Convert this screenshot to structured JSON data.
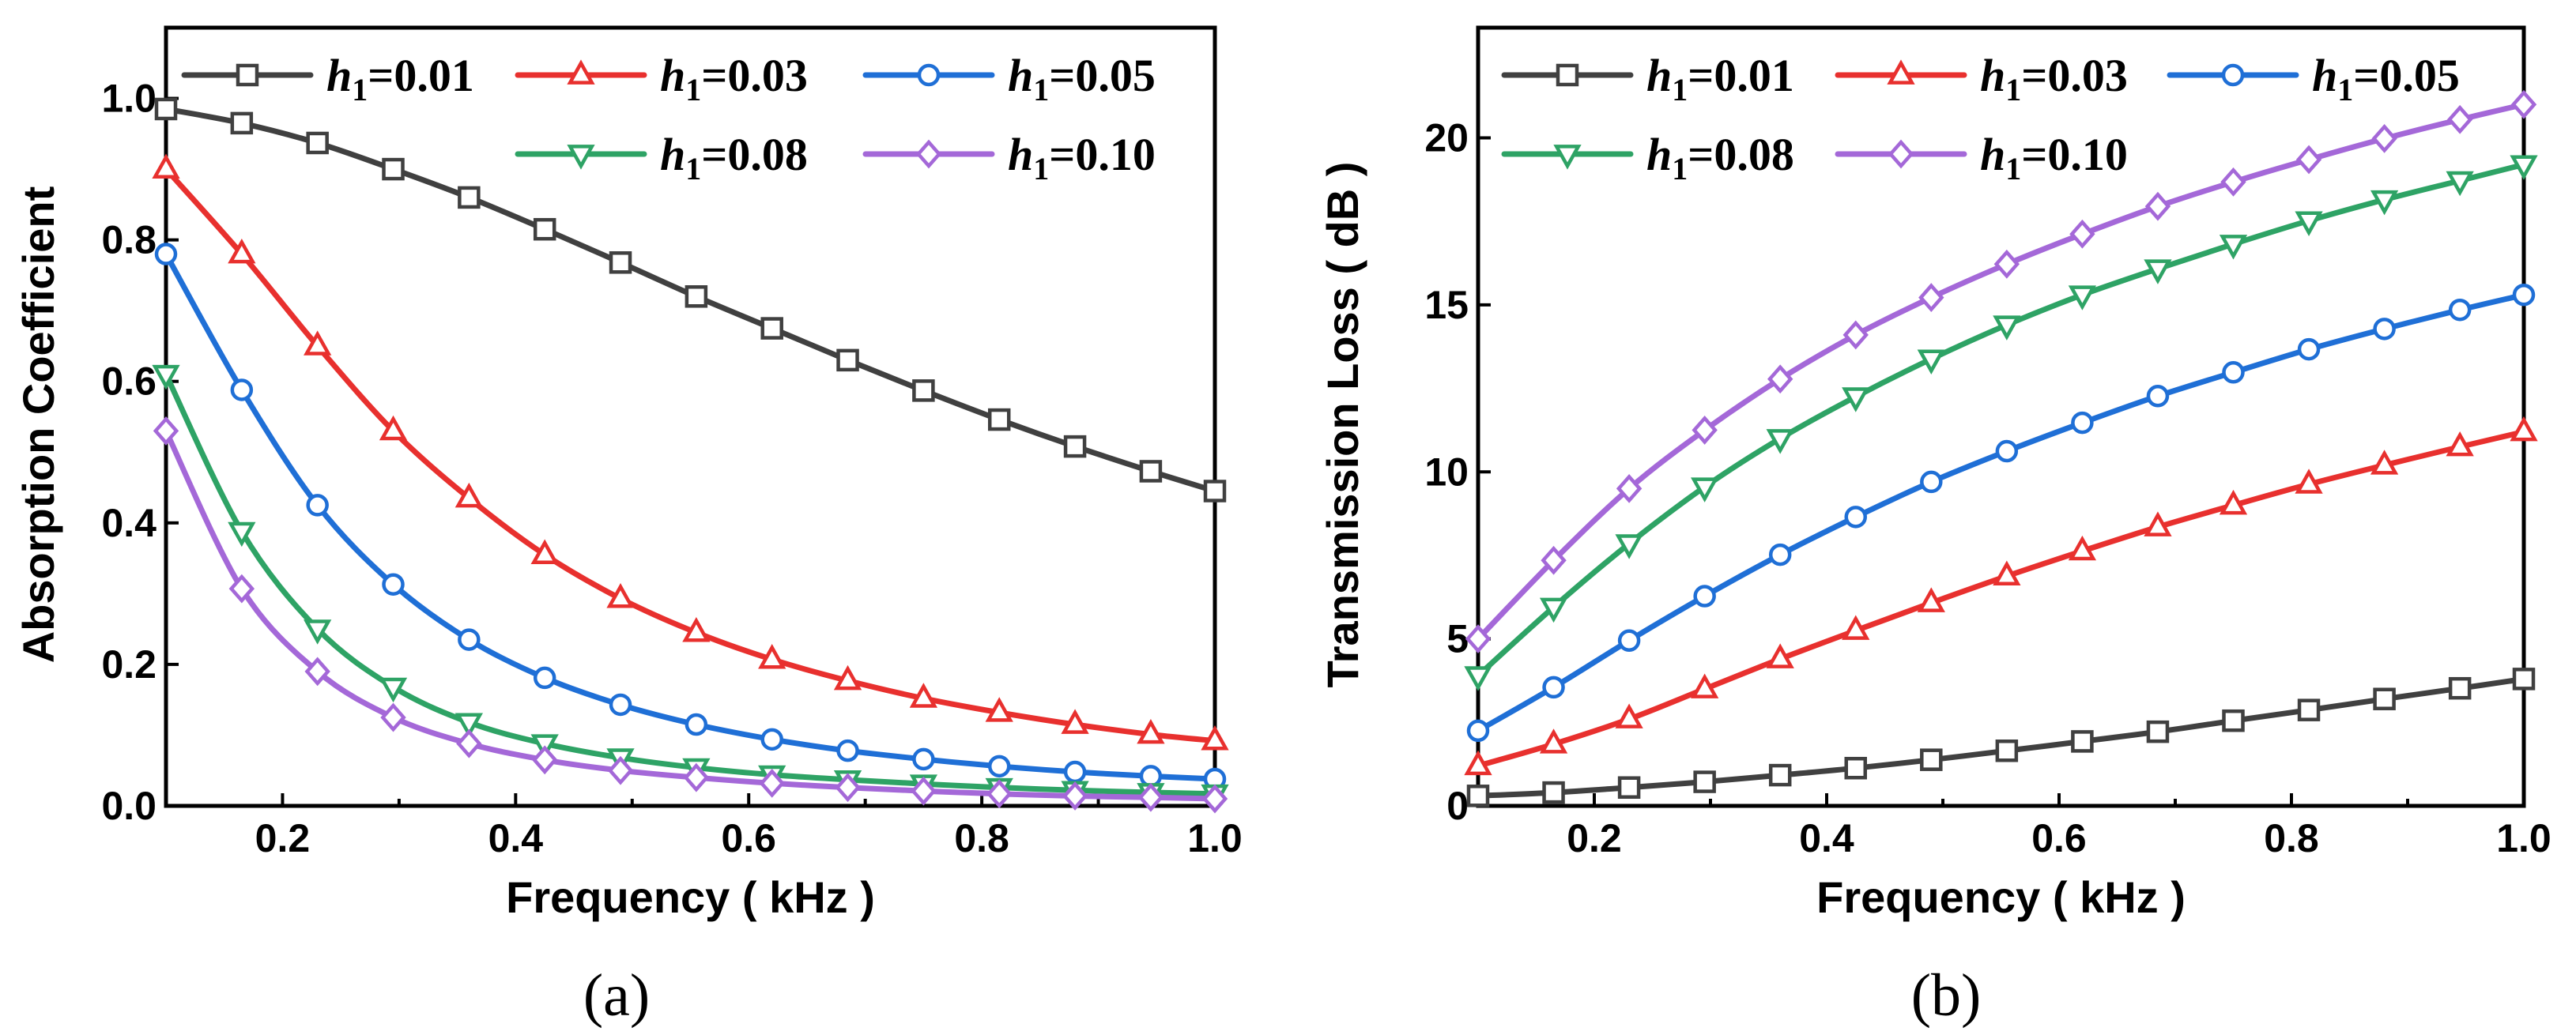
{
  "chart_data": [
    {
      "type": "line",
      "caption": "(a)",
      "xlabel": "Frequency ( kHz )",
      "ylabel": "Absorption Coefficient",
      "xlim": [
        0.1,
        1.0
      ],
      "ylim": [
        0.0,
        1.1
      ],
      "xticks": [
        0.2,
        0.4,
        0.6,
        0.8,
        1.0
      ],
      "xtick_labels": [
        "0.2",
        "0.4",
        "0.6",
        "0.8",
        "1.0"
      ],
      "yticks": [
        0.0,
        0.2,
        0.4,
        0.6,
        0.8,
        1.0
      ],
      "ytick_labels": [
        "0.0",
        "0.2",
        "0.4",
        "0.6",
        "0.8",
        "1.0"
      ],
      "legend_position": "top",
      "x": [
        0.1,
        0.165,
        0.23,
        0.295,
        0.36,
        0.425,
        0.49,
        0.555,
        0.62,
        0.685,
        0.75,
        0.815,
        0.88,
        0.945,
        1.0
      ],
      "series": [
        {
          "name": "h1=0.01",
          "label_var": "h",
          "label_sub": "1",
          "label_val": "=0.01",
          "color": "#404040",
          "marker": "square",
          "values": [
            0.985,
            0.965,
            0.937,
            0.9,
            0.86,
            0.815,
            0.768,
            0.72,
            0.675,
            0.63,
            0.587,
            0.546,
            0.508,
            0.473,
            0.445
          ]
        },
        {
          "name": "h1=0.03",
          "label_var": "h",
          "label_sub": "1",
          "label_val": "=0.03",
          "color": "#e8302e",
          "marker": "triangle-up",
          "values": [
            0.9,
            0.78,
            0.65,
            0.53,
            0.435,
            0.355,
            0.293,
            0.245,
            0.207,
            0.177,
            0.152,
            0.132,
            0.115,
            0.101,
            0.092
          ]
        },
        {
          "name": "h1=0.05",
          "label_var": "h",
          "label_sub": "1",
          "label_val": "=0.05",
          "color": "#1f6fd6",
          "marker": "circle",
          "values": [
            0.78,
            0.588,
            0.425,
            0.313,
            0.235,
            0.181,
            0.143,
            0.115,
            0.094,
            0.078,
            0.066,
            0.056,
            0.048,
            0.042,
            0.038
          ]
        },
        {
          "name": "h1=0.08",
          "label_var": "h",
          "label_sub": "1",
          "label_val": "=0.08",
          "color": "#2ea365",
          "marker": "triangle-down",
          "values": [
            0.61,
            0.388,
            0.25,
            0.168,
            0.118,
            0.088,
            0.068,
            0.054,
            0.044,
            0.037,
            0.031,
            0.026,
            0.022,
            0.019,
            0.017
          ]
        },
        {
          "name": "h1=0.10",
          "label_var": "h",
          "label_sub": "1",
          "label_val": "=0.10",
          "color": "#a468d8",
          "marker": "diamond",
          "values": [
            0.53,
            0.307,
            0.19,
            0.125,
            0.088,
            0.065,
            0.05,
            0.04,
            0.032,
            0.026,
            0.021,
            0.017,
            0.014,
            0.012,
            0.01
          ]
        }
      ]
    },
    {
      "type": "line",
      "caption": "(b)",
      "xlabel": "Frequency ( kHz )",
      "ylabel": "Transmission Loss ( dB )",
      "xlim": [
        0.1,
        1.0
      ],
      "ylim": [
        0,
        23.3
      ],
      "xticks": [
        0.2,
        0.4,
        0.6,
        0.8,
        1.0
      ],
      "xtick_labels": [
        "0.2",
        "0.4",
        "0.6",
        "0.8",
        "1.0"
      ],
      "yticks": [
        0,
        5,
        10,
        15,
        20
      ],
      "ytick_labels": [
        "0",
        "5",
        "10",
        "15",
        "20"
      ],
      "legend_position": "top",
      "x": [
        0.1,
        0.165,
        0.23,
        0.295,
        0.36,
        0.425,
        0.49,
        0.555,
        0.62,
        0.685,
        0.75,
        0.815,
        0.88,
        0.945,
        1.0
      ],
      "series": [
        {
          "name": "h1=0.01",
          "label_var": "h",
          "label_sub": "1",
          "label_val": "=0.01",
          "color": "#404040",
          "marker": "square",
          "values": [
            0.3,
            0.4,
            0.55,
            0.72,
            0.92,
            1.13,
            1.38,
            1.65,
            1.93,
            2.22,
            2.55,
            2.87,
            3.2,
            3.52,
            3.8
          ]
        },
        {
          "name": "h1=0.03",
          "label_var": "h",
          "label_sub": "1",
          "label_val": "=0.03",
          "color": "#e8302e",
          "marker": "triangle-up",
          "values": [
            1.2,
            1.85,
            2.6,
            3.5,
            4.4,
            5.25,
            6.08,
            6.88,
            7.63,
            8.35,
            9.0,
            9.63,
            10.2,
            10.75,
            11.2
          ]
        },
        {
          "name": "h1=0.05",
          "label_var": "h",
          "label_sub": "1",
          "label_val": "=0.05",
          "color": "#1f6fd6",
          "marker": "circle",
          "values": [
            2.25,
            3.55,
            4.95,
            6.28,
            7.52,
            8.65,
            9.7,
            10.62,
            11.47,
            12.27,
            12.98,
            13.67,
            14.28,
            14.85,
            15.3
          ]
        },
        {
          "name": "h1=0.08",
          "label_var": "h",
          "label_sub": "1",
          "label_val": "=0.08",
          "color": "#2ea365",
          "marker": "triangle-down",
          "values": [
            3.9,
            5.95,
            7.85,
            9.55,
            11.0,
            12.25,
            13.38,
            14.4,
            15.3,
            16.08,
            16.82,
            17.52,
            18.15,
            18.72,
            19.2
          ]
        },
        {
          "name": "h1=0.10",
          "label_var": "h",
          "label_sub": "1",
          "label_val": "=0.10",
          "color": "#a468d8",
          "marker": "diamond",
          "values": [
            5.0,
            7.35,
            9.5,
            11.25,
            12.78,
            14.1,
            15.22,
            16.22,
            17.12,
            17.95,
            18.68,
            19.35,
            19.98,
            20.55,
            21.0
          ]
        }
      ]
    }
  ]
}
